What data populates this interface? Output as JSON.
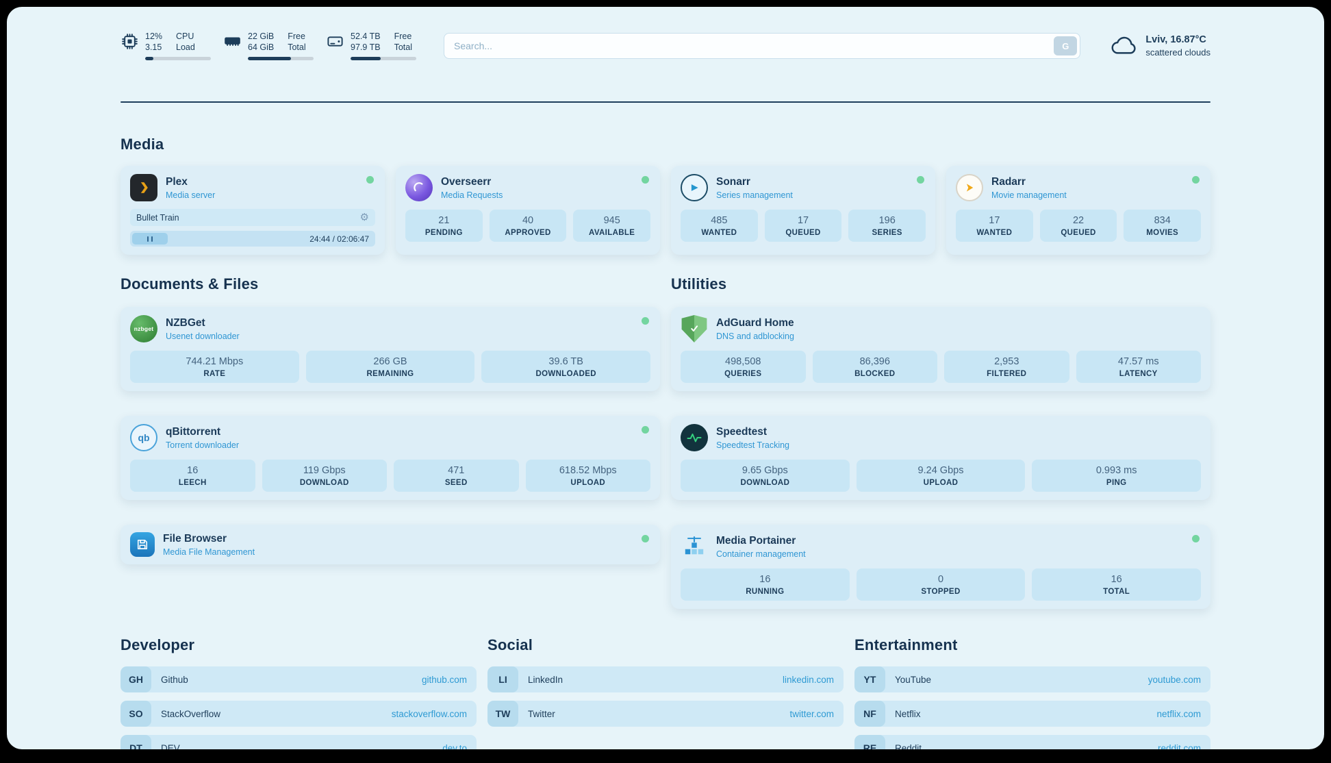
{
  "header": {
    "cpu": {
      "rows": [
        {
          "value": "12%",
          "label": "CPU"
        },
        {
          "value": "3.15",
          "label": "Load"
        }
      ],
      "progress_pct": 12
    },
    "memory": {
      "rows": [
        {
          "value": "22 GiB",
          "label": "Free"
        },
        {
          "value": "64 GiB",
          "label": "Total"
        }
      ],
      "progress_pct": 66
    },
    "storage": {
      "rows": [
        {
          "value": "52.4 TB",
          "label": "Free"
        },
        {
          "value": "97.9 TB",
          "label": "Total"
        }
      ],
      "progress_pct": 46
    },
    "search": {
      "placeholder": "Search...",
      "button_label": "G"
    },
    "weather": {
      "location": "Lviv, 16.87°C",
      "condition": "scattered clouds"
    }
  },
  "sections": {
    "media": {
      "title": "Media",
      "cards": [
        {
          "name": "Plex",
          "subtitle": "Media server",
          "online": true,
          "player": {
            "title": "Bullet Train",
            "time": "24:44 / 02:06:47",
            "progress_pct": 20
          }
        },
        {
          "name": "Overseerr",
          "subtitle": "Media Requests",
          "online": true,
          "stats": [
            {
              "value": "21",
              "label": "PENDING"
            },
            {
              "value": "40",
              "label": "APPROVED"
            },
            {
              "value": "945",
              "label": "AVAILABLE"
            }
          ]
        },
        {
          "name": "Sonarr",
          "subtitle": "Series management",
          "online": true,
          "stats": [
            {
              "value": "485",
              "label": "WANTED"
            },
            {
              "value": "17",
              "label": "QUEUED"
            },
            {
              "value": "196",
              "label": "SERIES"
            }
          ]
        },
        {
          "name": "Radarr",
          "subtitle": "Movie management",
          "online": true,
          "stats": [
            {
              "value": "17",
              "label": "WANTED"
            },
            {
              "value": "22",
              "label": "QUEUED"
            },
            {
              "value": "834",
              "label": "MOVIES"
            }
          ]
        }
      ]
    },
    "documents": {
      "title": "Documents & Files",
      "cards": [
        {
          "name": "NZBGet",
          "subtitle": "Usenet downloader",
          "online": true,
          "icon_text": "nzbget",
          "stats": [
            {
              "value": "744.21 Mbps",
              "label": "RATE"
            },
            {
              "value": "266 GB",
              "label": "REMAINING"
            },
            {
              "value": "39.6 TB",
              "label": "DOWNLOADED"
            }
          ]
        },
        {
          "name": "qBittorrent",
          "subtitle": "Torrent downloader",
          "online": true,
          "icon_text": "qb",
          "stats": [
            {
              "value": "16",
              "label": "LEECH"
            },
            {
              "value": "119 Gbps",
              "label": "DOWNLOAD"
            },
            {
              "value": "471",
              "label": "SEED"
            },
            {
              "value": "618.52 Mbps",
              "label": "UPLOAD"
            }
          ]
        },
        {
          "name": "File Browser",
          "subtitle": "Media File Management",
          "online": true,
          "stats": []
        }
      ]
    },
    "utilities": {
      "title": "Utilities",
      "cards": [
        {
          "name": "AdGuard Home",
          "subtitle": "DNS and adblocking",
          "online": false,
          "stats": [
            {
              "value": "498,508",
              "label": "QUERIES"
            },
            {
              "value": "86,396",
              "label": "BLOCKED"
            },
            {
              "value": "2,953",
              "label": "FILTERED"
            },
            {
              "value": "47.57 ms",
              "label": "LATENCY"
            }
          ]
        },
        {
          "name": "Speedtest",
          "subtitle": "Speedtest Tracking",
          "online": false,
          "stats": [
            {
              "value": "9.65 Gbps",
              "label": "DOWNLOAD"
            },
            {
              "value": "9.24 Gbps",
              "label": "UPLOAD"
            },
            {
              "value": "0.993 ms",
              "label": "PING"
            }
          ]
        },
        {
          "name": "Media Portainer",
          "subtitle": "Container management",
          "online": true,
          "stats": [
            {
              "value": "16",
              "label": "RUNNING"
            },
            {
              "value": "0",
              "label": "STOPPED"
            },
            {
              "value": "16",
              "label": "TOTAL"
            }
          ]
        }
      ]
    },
    "bookmarks": [
      {
        "title": "Developer",
        "items": [
          {
            "abbr": "GH",
            "name": "Github",
            "url": "github.com"
          },
          {
            "abbr": "SO",
            "name": "StackOverflow",
            "url": "stackoverflow.com"
          },
          {
            "abbr": "DT",
            "name": "DEV",
            "url": "dev.to"
          }
        ]
      },
      {
        "title": "Social",
        "items": [
          {
            "abbr": "LI",
            "name": "LinkedIn",
            "url": "linkedin.com"
          },
          {
            "abbr": "TW",
            "name": "Twitter",
            "url": "twitter.com"
          }
        ]
      },
      {
        "title": "Entertainment",
        "items": [
          {
            "abbr": "YT",
            "name": "YouTube",
            "url": "youtube.com"
          },
          {
            "abbr": "NF",
            "name": "Netflix",
            "url": "netflix.com"
          },
          {
            "abbr": "RE",
            "name": "Reddit",
            "url": "reddit.com"
          }
        ]
      }
    ]
  },
  "colors": {
    "accent_blue": "#2e9ad3",
    "online_green": "#73d5a0",
    "navy_text": "#1d3d5a",
    "page_bg": "#e7f4f9",
    "card_bg": "#ddeef7",
    "stat_bg": "#c8e6f5"
  }
}
